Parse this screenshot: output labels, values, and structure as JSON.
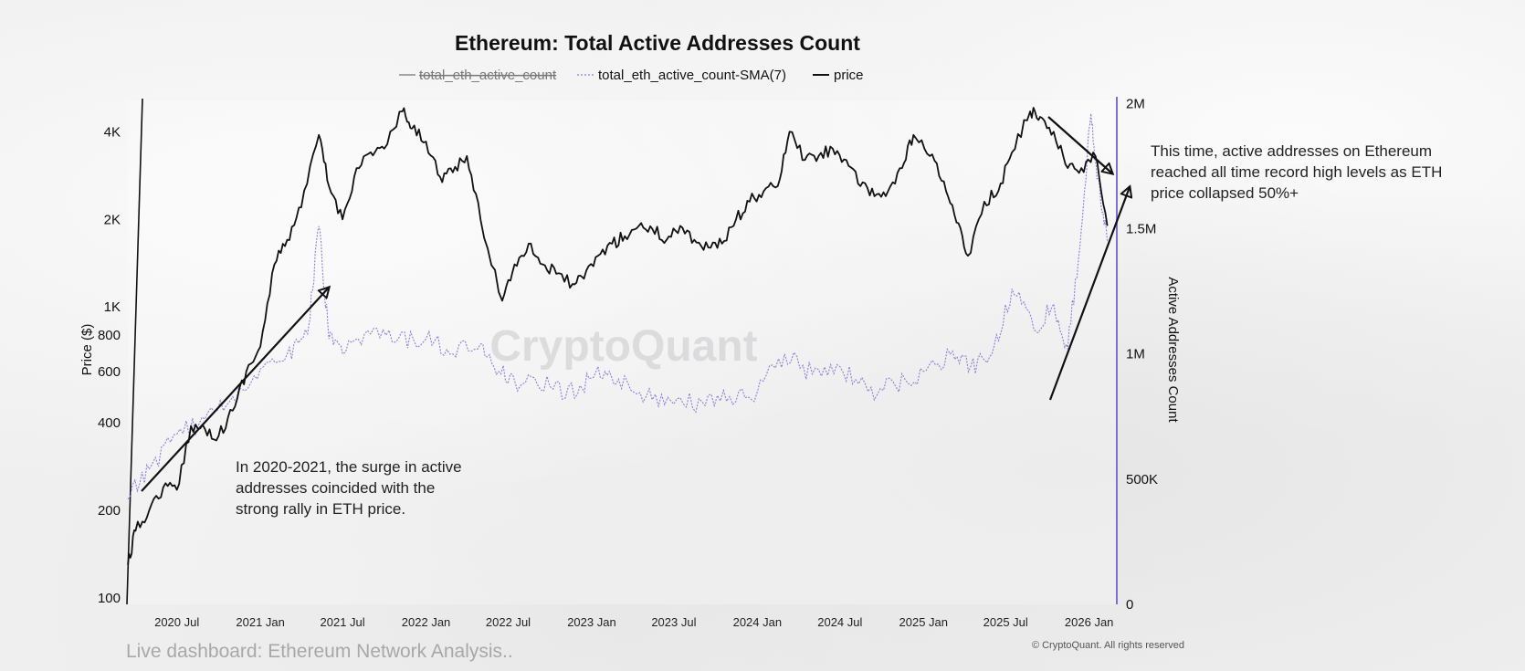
{
  "chart_data": {
    "type": "line",
    "title": "Ethereum: Total Active Addresses Count",
    "legend": [
      {
        "name": "total_eth_active_count",
        "disabled": true,
        "color": "#999999"
      },
      {
        "name": "total_eth_active_count-SMA(7)",
        "color": "#8b7fd8"
      },
      {
        "name": "price",
        "color": "#111111"
      }
    ],
    "x_tick_labels": [
      "2020 Jul",
      "2021 Jan",
      "2021 Jul",
      "2022 Jan",
      "2022 Jul",
      "2023 Jan",
      "2023 Jul",
      "2024 Jan",
      "2024 Jul",
      "2025 Jan",
      "2025 Jul",
      "2026 Jan"
    ],
    "x_ticks": [
      "2020-07-01",
      "2021-01-01",
      "2021-07-01",
      "2022-01-01",
      "2022-07-01",
      "2023-01-01",
      "2023-07-01",
      "2024-01-01",
      "2024-07-01",
      "2025-01-01",
      "2025-07-01",
      "2026-01-01"
    ],
    "xlim": [
      "2020-03-15",
      "2026-03-01"
    ],
    "y_left": {
      "label": "Price ($)",
      "scale": "log",
      "tick_labels": [
        "100",
        "200",
        "400",
        "600",
        "800",
        "1K",
        "2K",
        "4K"
      ],
      "tick_values": [
        100,
        200,
        400,
        600,
        800,
        1000,
        2000,
        4000
      ],
      "lim": [
        95,
        5200
      ]
    },
    "y_right": {
      "label": "Active Addresses Count",
      "scale": "linear",
      "tick_labels": [
        "0",
        "500K",
        "1M",
        "1.5M",
        "2M"
      ],
      "tick_values": [
        0,
        500000,
        1000000,
        1500000,
        2000000
      ],
      "lim": [
        0,
        2020000
      ]
    },
    "series": [
      {
        "name": "price",
        "axis": "left",
        "x": [
          "2020-03-15",
          "2020-04-01",
          "2020-05-01",
          "2020-06-01",
          "2020-07-01",
          "2020-08-01",
          "2020-09-01",
          "2020-10-01",
          "2020-11-01",
          "2020-12-01",
          "2021-01-01",
          "2021-02-01",
          "2021-03-01",
          "2021-04-01",
          "2021-05-10",
          "2021-06-01",
          "2021-07-01",
          "2021-08-01",
          "2021-09-01",
          "2021-10-01",
          "2021-11-10",
          "2021-12-01",
          "2022-01-01",
          "2022-02-01",
          "2022-03-01",
          "2022-04-01",
          "2022-05-01",
          "2022-06-18",
          "2022-07-15",
          "2022-08-15",
          "2022-09-15",
          "2022-10-15",
          "2022-11-20",
          "2022-12-15",
          "2023-01-15",
          "2023-02-15",
          "2023-03-15",
          "2023-04-15",
          "2023-05-15",
          "2023-06-15",
          "2023-07-15",
          "2023-08-15",
          "2023-09-15",
          "2023-10-15",
          "2023-11-15",
          "2023-12-15",
          "2024-01-15",
          "2024-02-15",
          "2024-03-12",
          "2024-04-15",
          "2024-05-15",
          "2024-06-15",
          "2024-07-15",
          "2024-08-15",
          "2024-09-15",
          "2024-10-15",
          "2024-11-15",
          "2024-12-10",
          "2025-01-15",
          "2025-02-15",
          "2025-03-15",
          "2025-04-09",
          "2025-05-15",
          "2025-06-15",
          "2025-07-15",
          "2025-08-24",
          "2025-09-15",
          "2025-10-15",
          "2025-11-15",
          "2025-12-15",
          "2026-01-15",
          "2026-02-10"
        ],
        "values": [
          130,
          170,
          200,
          240,
          235,
          390,
          380,
          360,
          440,
          600,
          730,
          1400,
          1700,
          2200,
          3900,
          2600,
          2000,
          3000,
          3400,
          3500,
          4700,
          4100,
          3700,
          2800,
          2900,
          3300,
          2000,
          1050,
          1400,
          1650,
          1400,
          1300,
          1200,
          1250,
          1500,
          1650,
          1750,
          1900,
          1850,
          1700,
          1900,
          1700,
          1600,
          1650,
          2000,
          2300,
          2500,
          2600,
          4000,
          3200,
          3300,
          3500,
          3200,
          2600,
          2400,
          2500,
          3000,
          3900,
          3300,
          2700,
          1950,
          1500,
          2300,
          2500,
          3400,
          4700,
          4500,
          4000,
          3000,
          3000,
          3300,
          1900
        ]
      },
      {
        "name": "total_eth_active_count-SMA(7)",
        "axis": "right",
        "x": [
          "2020-03-15",
          "2020-05-01",
          "2020-07-01",
          "2020-09-01",
          "2020-11-01",
          "2021-01-01",
          "2021-03-01",
          "2021-04-15",
          "2021-05-10",
          "2021-06-01",
          "2021-07-01",
          "2021-09-01",
          "2021-11-01",
          "2022-01-01",
          "2022-03-01",
          "2022-05-01",
          "2022-06-15",
          "2022-08-01",
          "2022-10-01",
          "2022-12-01",
          "2023-01-15",
          "2023-03-01",
          "2023-05-01",
          "2023-07-01",
          "2023-09-01",
          "2023-11-01",
          "2024-01-01",
          "2024-03-01",
          "2024-05-01",
          "2024-07-01",
          "2024-09-01",
          "2024-11-01",
          "2025-01-01",
          "2025-03-01",
          "2025-04-15",
          "2025-06-01",
          "2025-07-15",
          "2025-09-01",
          "2025-10-15",
          "2025-11-15",
          "2025-12-15",
          "2026-01-05",
          "2026-01-20",
          "2026-02-10"
        ],
        "values": [
          420000,
          540000,
          680000,
          740000,
          830000,
          940000,
          1000000,
          1080000,
          1510000,
          1060000,
          1000000,
          1080000,
          1060000,
          1060000,
          1000000,
          1040000,
          920000,
          880000,
          870000,
          840000,
          950000,
          900000,
          830000,
          800000,
          810000,
          830000,
          850000,
          1000000,
          920000,
          950000,
          850000,
          870000,
          930000,
          1000000,
          950000,
          1000000,
          1260000,
          1100000,
          1200000,
          1020000,
          1500000,
          1960000,
          1700000,
          1450000
        ]
      }
    ],
    "annotations": [
      {
        "lines": [
          "In 2020-2021, the surge in active",
          "addresses coincided with the",
          "strong rally in ETH price."
        ]
      },
      {
        "lines": [
          "This time, active addresses on Ethereum",
          "reached all time record high levels as ETH",
          "price collapsed 50%+"
        ]
      }
    ],
    "grid": false,
    "legend_position": "top-center"
  },
  "watermark": "CryptoQuant",
  "footer": {
    "live_dashboard": "Live dashboard: Ethereum Network Analysis..",
    "copyright": "© CryptoQuant. All rights reserved"
  }
}
